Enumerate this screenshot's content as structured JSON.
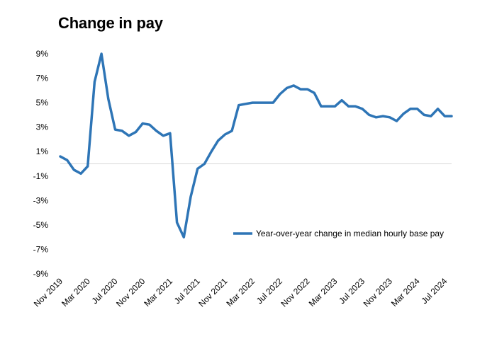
{
  "chart_data": {
    "type": "line",
    "title": "Change in pay",
    "xlabel": "",
    "ylabel": "",
    "ylim": [
      -9,
      9
    ],
    "y_ticks": [
      9,
      7,
      5,
      3,
      1,
      -1,
      -3,
      -5,
      -7,
      -9
    ],
    "y_tick_labels": [
      "9%",
      "7%",
      "5%",
      "3%",
      "1%",
      "-1%",
      "-3%",
      "-5%",
      "-7%",
      "-9%"
    ],
    "x_tick_labels": [
      "Nov 2019",
      "Mar 2020",
      "Jul 2020",
      "Nov 2020",
      "Mar 2021",
      "Jul 2021",
      "Nov 2021",
      "Mar 2022",
      "Jul 2022",
      "Nov 2022",
      "Mar 2023",
      "Jul 2023",
      "Nov 2023",
      "Mar 2024",
      "Jul 2024"
    ],
    "x_tick_months": [
      "2019-11",
      "2020-03",
      "2020-07",
      "2020-11",
      "2021-03",
      "2021-07",
      "2021-11",
      "2022-03",
      "2022-07",
      "2022-11",
      "2023-03",
      "2023-07",
      "2023-11",
      "2024-03",
      "2024-07"
    ],
    "legend_position": "center-right",
    "grid": false,
    "colors": {
      "series": "#2E75B6",
      "zero_line": "#D9D9D9"
    },
    "series": [
      {
        "name": "Year-over-year change in median hourly base pay",
        "x": [
          "2019-11",
          "2019-12",
          "2020-01",
          "2020-02",
          "2020-03",
          "2020-04",
          "2020-05",
          "2020-06",
          "2020-07",
          "2020-08",
          "2020-09",
          "2020-10",
          "2020-11",
          "2020-12",
          "2021-01",
          "2021-02",
          "2021-03",
          "2021-04",
          "2021-05",
          "2021-06",
          "2021-07",
          "2021-08",
          "2021-09",
          "2021-10",
          "2021-11",
          "2021-12",
          "2022-01",
          "2022-02",
          "2022-03",
          "2022-04",
          "2022-05",
          "2022-06",
          "2022-07",
          "2022-08",
          "2022-09",
          "2022-10",
          "2022-11",
          "2022-12",
          "2023-01",
          "2023-02",
          "2023-03",
          "2023-04",
          "2023-05",
          "2023-06",
          "2023-07",
          "2023-08",
          "2023-09",
          "2023-10",
          "2023-11",
          "2023-12",
          "2024-01",
          "2024-02",
          "2024-03",
          "2024-04",
          "2024-05",
          "2024-06",
          "2024-07",
          "2024-08"
        ],
        "values": [
          0.6,
          0.3,
          -0.5,
          -0.8,
          -0.2,
          6.7,
          9.0,
          5.3,
          2.8,
          2.7,
          2.3,
          2.6,
          3.3,
          3.2,
          2.7,
          2.3,
          2.5,
          -4.8,
          -6.0,
          -2.7,
          -0.4,
          0.0,
          1.0,
          1.9,
          2.4,
          2.7,
          4.8,
          4.9,
          5.0,
          5.0,
          5.0,
          5.0,
          5.7,
          6.2,
          6.4,
          6.1,
          6.1,
          5.8,
          4.7,
          4.7,
          4.7,
          5.2,
          4.7,
          4.7,
          4.5,
          4.0,
          3.8,
          3.9,
          3.8,
          3.5,
          4.1,
          4.5,
          4.5,
          4.0,
          3.9,
          4.5,
          3.9,
          3.9
        ]
      }
    ]
  }
}
